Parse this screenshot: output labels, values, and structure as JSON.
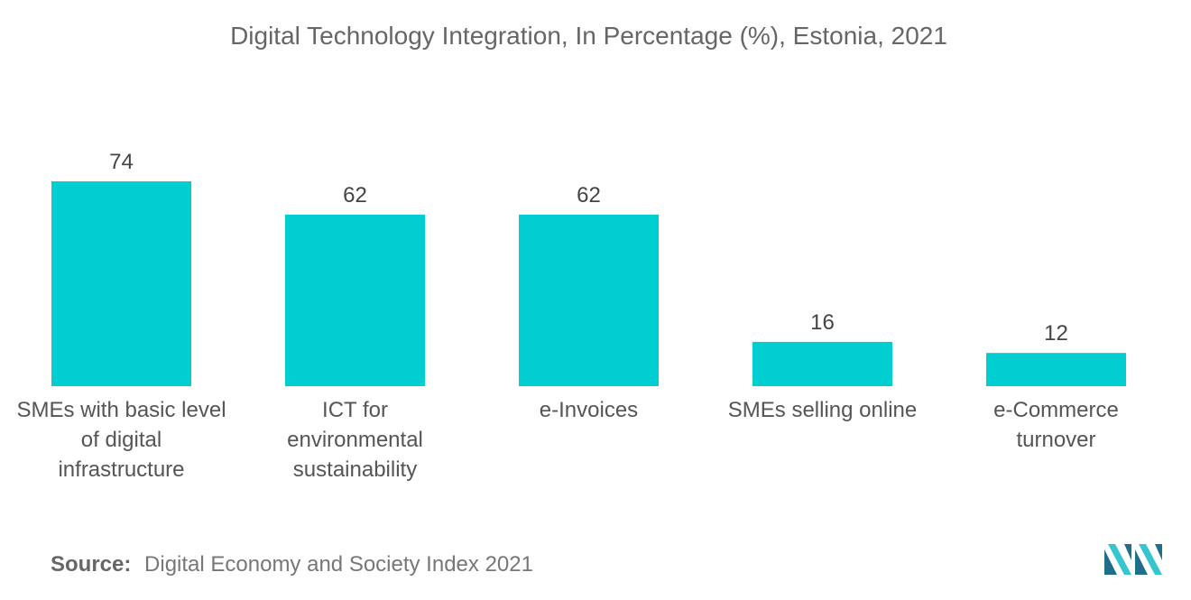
{
  "title": "Digital Technology Integration, In Percentage (%), Estonia, 2021",
  "source": {
    "label": "Source:",
    "text": "Digital Economy and Society Index 2021"
  },
  "colors": {
    "bar": "#00CED1",
    "logo_dark": "#1f6f8b",
    "logo_light": "#35c6cf"
  },
  "logo_icon": "mordor-logo-icon",
  "chart_data": {
    "type": "bar",
    "title": "Digital Technology Integration, In Percentage (%), Estonia, 2021",
    "categories": [
      "SMEs with basic level of digital infrastructure",
      "ICT for environmental sustainability",
      "e-Invoices",
      "SMEs selling online",
      "e-Commerce turnover"
    ],
    "values": [
      74,
      62,
      62,
      16,
      12
    ],
    "xlabel": "",
    "ylabel": "",
    "ylim": [
      0,
      74
    ],
    "grid": false,
    "legend": "none"
  }
}
